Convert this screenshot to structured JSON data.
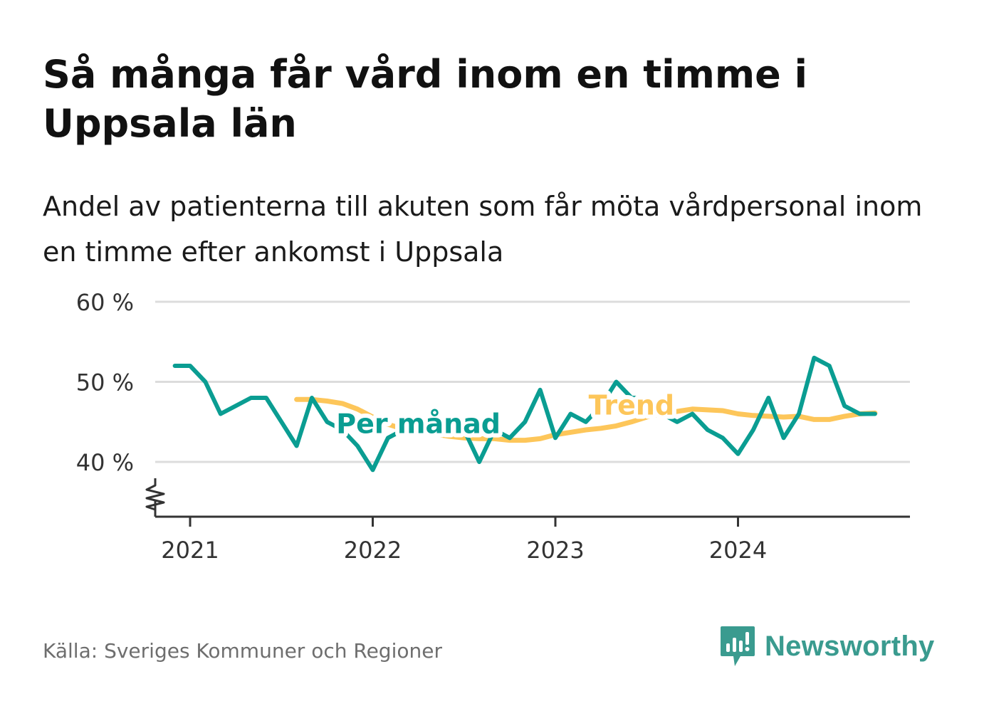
{
  "header": {
    "title": "Så många får vård inom en timme i Uppsala län",
    "subtitle": "Andel av patienterna till akuten som får möta vårdpersonal inom en timme efter ankomst i Uppsala"
  },
  "footer": {
    "source": "Källa: Sveriges Kommuner och Regioner",
    "brand": "Newsworthy"
  },
  "colors": {
    "monthly": "#0a9d92",
    "trend": "#fdc65a",
    "grid": "#dcdcdc",
    "axis": "#333333",
    "brand": "#3a9b8f"
  },
  "chart_data": {
    "type": "line",
    "x_type": "month",
    "y_unit": "%",
    "ylim": [
      34,
      60
    ],
    "yticks": [
      40,
      50,
      60
    ],
    "ytick_labels": [
      "40 %",
      "50 %",
      "60 %"
    ],
    "xticks": [
      "2021-01",
      "2022-01",
      "2023-01",
      "2024-01"
    ],
    "xtick_labels": [
      "2021",
      "2022",
      "2023",
      "2024"
    ],
    "axis_break": true,
    "grid": true,
    "series": [
      {
        "name": "Per månad",
        "color": "#0a9d92",
        "x": [
          "2020-12",
          "2021-01",
          "2021-02",
          "2021-03",
          "2021-04",
          "2021-05",
          "2021-06",
          "2021-07",
          "2021-08",
          "2021-09",
          "2021-10",
          "2021-11",
          "2021-12",
          "2022-01",
          "2022-02",
          "2022-03",
          "2022-04",
          "2022-05",
          "2022-06",
          "2022-07",
          "2022-08",
          "2022-09",
          "2022-10",
          "2022-11",
          "2022-12",
          "2023-01",
          "2023-02",
          "2023-03",
          "2023-04",
          "2023-05",
          "2023-06",
          "2023-07",
          "2023-08",
          "2023-09",
          "2023-10",
          "2023-11",
          "2023-12",
          "2024-01",
          "2024-02",
          "2024-03",
          "2024-04",
          "2024-05",
          "2024-06",
          "2024-07",
          "2024-08",
          "2024-09",
          "2024-10"
        ],
        "values": [
          52,
          52,
          50,
          46,
          47,
          48,
          48,
          45,
          42,
          48,
          45,
          44,
          42,
          39,
          43,
          44,
          45,
          45,
          44,
          44,
          40,
          44,
          43,
          45,
          49,
          43,
          46,
          45,
          47,
          50,
          48,
          48,
          46,
          45,
          46,
          44,
          43,
          41,
          44,
          48,
          43,
          46,
          53,
          52,
          47,
          46,
          46
        ]
      },
      {
        "name": "Trend",
        "color": "#fdc65a",
        "x": [
          "2021-08",
          "2021-09",
          "2021-10",
          "2021-11",
          "2021-12",
          "2022-01",
          "2022-02",
          "2022-03",
          "2022-04",
          "2022-05",
          "2022-06",
          "2022-07",
          "2022-08",
          "2022-09",
          "2022-10",
          "2022-11",
          "2022-12",
          "2023-01",
          "2023-02",
          "2023-03",
          "2023-04",
          "2023-05",
          "2023-06",
          "2023-07",
          "2023-08",
          "2023-09",
          "2023-10",
          "2023-11",
          "2023-12",
          "2024-01",
          "2024-02",
          "2024-03",
          "2024-04",
          "2024-05",
          "2024-06",
          "2024-07",
          "2024-08",
          "2024-09",
          "2024-10"
        ],
        "values": [
          47.8,
          47.8,
          47.6,
          47.3,
          46.6,
          45.6,
          44.7,
          44.1,
          43.7,
          43.5,
          43.2,
          43.0,
          42.9,
          42.9,
          42.7,
          42.7,
          42.9,
          43.4,
          43.7,
          44.0,
          44.2,
          44.5,
          45.0,
          45.6,
          46.0,
          46.3,
          46.6,
          46.5,
          46.4,
          46.0,
          45.8,
          45.7,
          45.6,
          45.7,
          45.3,
          45.3,
          45.7,
          46.0,
          46.1
        ]
      }
    ],
    "labels": [
      {
        "series": "Per månad",
        "text": "Per månad",
        "x": "2022-04",
        "y": 43.6
      },
      {
        "series": "Trend",
        "text": "Trend",
        "x": "2023-06",
        "y": 45.9
      }
    ]
  }
}
